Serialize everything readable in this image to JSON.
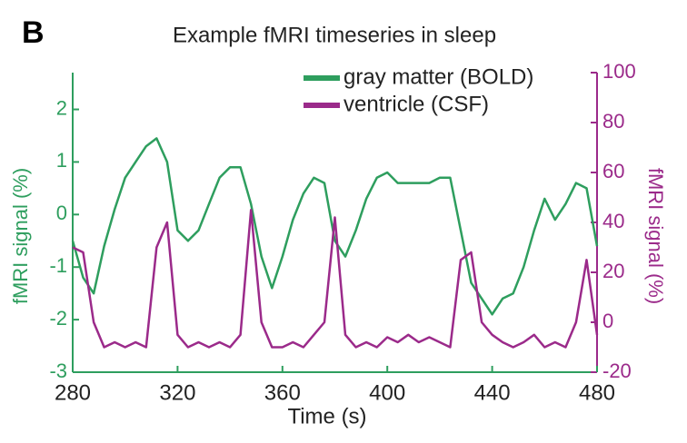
{
  "chart_data": {
    "type": "line",
    "panel_label": "B",
    "title": "Example fMRI timeseries in sleep",
    "xlabel": "Time (s)",
    "ylabel": "fMRI signal (%)",
    "y2label": "fMRI signal (%)",
    "x": [
      280,
      284,
      288,
      292,
      296,
      300,
      304,
      308,
      312,
      316,
      320,
      324,
      328,
      332,
      336,
      340,
      344,
      348,
      352,
      356,
      360,
      364,
      368,
      372,
      376,
      380,
      384,
      388,
      392,
      396,
      400,
      404,
      408,
      412,
      416,
      420,
      424,
      428,
      432,
      436,
      440,
      444,
      448,
      452,
      456,
      460,
      464,
      468,
      472,
      476,
      480
    ],
    "series": [
      {
        "name": "gray matter (BOLD)",
        "color": "#2e9e5e",
        "values": [
          -0.5,
          -1.2,
          -1.5,
          -0.6,
          0.1,
          0.7,
          1.0,
          1.3,
          1.45,
          1.0,
          -0.3,
          -0.5,
          -0.3,
          0.2,
          0.7,
          0.9,
          0.9,
          0.2,
          -0.8,
          -1.4,
          -0.8,
          -0.1,
          0.4,
          0.7,
          0.6,
          -0.5,
          -0.8,
          -0.3,
          0.3,
          0.7,
          0.8,
          0.6,
          0.6,
          0.6,
          0.6,
          0.7,
          0.7,
          -0.3,
          -1.3,
          -1.6,
          -1.9,
          -1.6,
          -1.5,
          -1.0,
          -0.3,
          0.3,
          -0.1,
          0.2,
          0.6,
          0.5,
          -0.6
        ]
      },
      {
        "name": "ventricle (CSF)",
        "color": "#9b2a8a",
        "axis": "y2",
        "values": [
          30,
          28,
          0,
          -10,
          -8,
          -10,
          -8,
          -10,
          30,
          40,
          -5,
          -10,
          -8,
          -10,
          -8,
          -10,
          -5,
          45,
          0,
          -10,
          -10,
          -8,
          -10,
          -5,
          0,
          42,
          -5,
          -10,
          -8,
          -10,
          -6,
          -8,
          -5,
          -8,
          -6,
          -8,
          -10,
          25,
          28,
          0,
          -5,
          -8,
          -10,
          -8,
          -5,
          -10,
          -8,
          -10,
          0,
          25,
          -5
        ]
      }
    ],
    "xlim": [
      280,
      480
    ],
    "xticks": [
      280,
      320,
      360,
      400,
      440,
      480
    ],
    "ylim": [
      -3,
      2.7
    ],
    "yticks": [
      -3,
      -2,
      -1,
      0,
      1,
      2
    ],
    "y2lim": [
      -20,
      100
    ],
    "y2ticks": [
      -20,
      0,
      20,
      40,
      60,
      80,
      100
    ]
  }
}
